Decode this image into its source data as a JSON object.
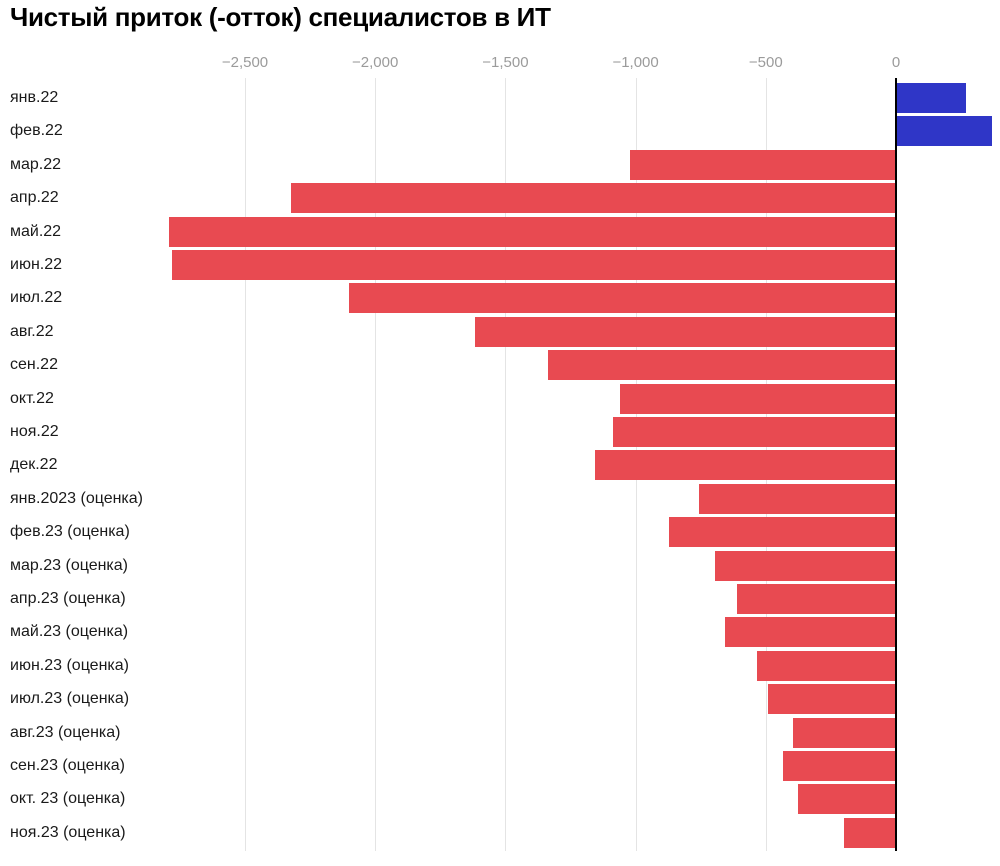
{
  "title": "Чистый приток (-отток) специалистов в ИТ",
  "colors": {
    "positive_bar": "#2f36c7",
    "negative_bar": "#e84a51",
    "gridline": "#e4e4e4",
    "zero_line": "#000000",
    "tick_label": "#9b9b9b",
    "category_label": "#1a1a1a",
    "title": "#000000"
  },
  "chart_data": {
    "type": "bar",
    "orientation": "horizontal",
    "title": "Чистый приток (-отток) специалистов в ИТ",
    "categories": [
      "янв.22",
      "фев.22",
      "мар.22",
      "апр.22",
      "май.22",
      "июн.22",
      "июл.22",
      "авг.22",
      "сен.22",
      "окт.22",
      "ноя.22",
      "дек.22",
      "янв.2023 (оценка)",
      "фев.23 (оценка)",
      "мар.23 (оценка)",
      "апр.23 (оценка)",
      "май.23 (оценка)",
      "июн.23 (оценка)",
      "июл.23 (оценка)",
      "авг.23 (оценка)",
      "сен.23 (оценка)",
      "окт. 23 (оценка)",
      "ноя.23 (оценка)"
    ],
    "values": [
      270,
      370,
      -1020,
      -2325,
      -2790,
      -2780,
      -2100,
      -1615,
      -1335,
      -1060,
      -1085,
      -1155,
      -755,
      -870,
      -695,
      -610,
      -655,
      -535,
      -490,
      -395,
      -435,
      -375,
      -200
    ],
    "x_axis": {
      "ticks": [
        {
          "value": -2500,
          "label": "−2,500"
        },
        {
          "value": -2000,
          "label": "−2,000"
        },
        {
          "value": -1500,
          "label": "−1,500"
        },
        {
          "value": -1000,
          "label": "−1,000"
        },
        {
          "value": -500,
          "label": "−500"
        },
        {
          "value": 0,
          "label": "0"
        }
      ],
      "range": [
        -2830,
        400
      ]
    },
    "ylabel": "",
    "xlabel": "",
    "legend": "none",
    "grid": true
  }
}
